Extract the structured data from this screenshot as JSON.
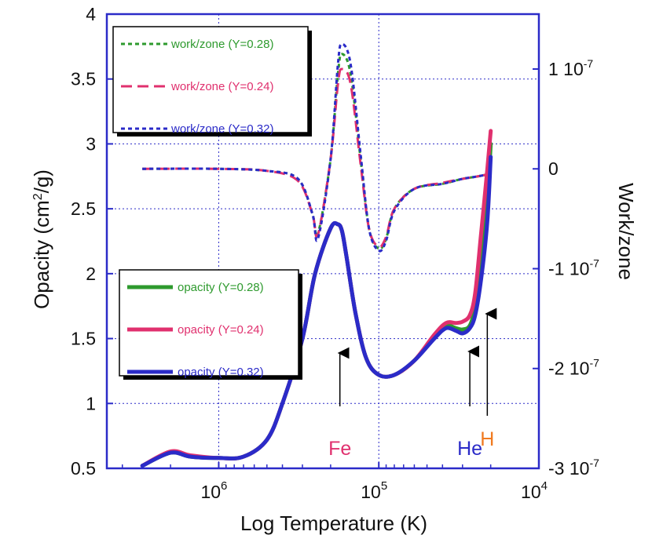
{
  "chart_data": {
    "type": "line",
    "title": "",
    "xlabel": "Log Temperature (K)",
    "x_scale": "log",
    "x_reversed": true,
    "xlim": [
      5000000,
      10000
    ],
    "xticks": [
      {
        "value": 1000000,
        "base": "10",
        "exp": "6"
      },
      {
        "value": 100000,
        "base": "10",
        "exp": "5"
      },
      {
        "value": 10000,
        "base": "10",
        "exp": "4"
      }
    ],
    "ylabel_left": {
      "pre": "Opacity (cm",
      "sup": "2",
      "post": "/g)"
    },
    "ylim_left": [
      0.5,
      4
    ],
    "yticks_left": [
      "0.5",
      "1",
      "1.5",
      "2",
      "2.5",
      "3",
      "3.5",
      "4"
    ],
    "ylabel_right": "Work/zone",
    "ylim_right": [
      -3e-07,
      1.55e-07
    ],
    "yticks_right": [
      {
        "value": 1e-07,
        "label": "1 10",
        "exp": "-7"
      },
      {
        "value": 0,
        "label": "0",
        "exp": ""
      },
      {
        "value": -1e-07,
        "label": "-1 10",
        "exp": "-7"
      },
      {
        "value": -2e-07,
        "label": "-2 10",
        "exp": "-7"
      },
      {
        "value": -3e-07,
        "label": "-3 10",
        "exp": "-7"
      }
    ],
    "grid": true,
    "series": [
      {
        "name": "work/zone (Y=0.28)",
        "axis": "right",
        "style": "dotted",
        "color": "#2e9a2e",
        "x": [
          3000000,
          1000000,
          500000,
          320000,
          260000,
          240000,
          200000,
          180000,
          170000,
          150000,
          130000,
          115000,
          100000,
          90000,
          80000,
          60000,
          40000,
          30000,
          25000,
          20000
        ],
        "y": [
          0,
          0,
          -2e-09,
          -1e-08,
          -4.5e-08,
          -6.5e-08,
          1e-08,
          9.5e-08,
          1.15e-07,
          9.5e-08,
          1e-08,
          -6e-08,
          -8e-08,
          -7e-08,
          -4e-08,
          -2e-08,
          -1.5e-08,
          -1e-08,
          -8e-09,
          -5e-09
        ]
      },
      {
        "name": "work/zone (Y=0.24)",
        "axis": "right",
        "style": "dashed",
        "color": "#e0306e",
        "x": [
          3000000,
          1000000,
          500000,
          320000,
          260000,
          240000,
          200000,
          180000,
          170000,
          150000,
          130000,
          115000,
          100000,
          90000,
          80000,
          60000,
          40000,
          30000,
          25000,
          20000
        ],
        "y": [
          0,
          0,
          -2e-09,
          -1.2e-08,
          -4.5e-08,
          -6.6e-08,
          1e-08,
          8.5e-08,
          1e-07,
          8.5e-08,
          5e-09,
          -6e-08,
          -7.8e-08,
          -6.8e-08,
          -4e-08,
          -2e-08,
          -1.4e-08,
          -1e-08,
          -8e-09,
          -5e-09
        ]
      },
      {
        "name": "work/zone (Y=0.32)",
        "axis": "right",
        "style": "dotted",
        "color": "#2b2bc8",
        "x": [
          3000000,
          1000000,
          500000,
          320000,
          260000,
          240000,
          200000,
          180000,
          170000,
          150000,
          130000,
          115000,
          100000,
          90000,
          80000,
          60000,
          40000,
          30000,
          25000,
          20000
        ],
        "y": [
          0,
          0,
          -2e-09,
          -1e-08,
          -4.5e-08,
          -7e-08,
          1e-08,
          1.05e-07,
          1.25e-07,
          1.05e-07,
          1.5e-08,
          -6e-08,
          -8.2e-08,
          -7.2e-08,
          -4.2e-08,
          -2e-08,
          -1.5e-08,
          -1e-08,
          -8e-09,
          -5e-09
        ]
      },
      {
        "name": "opacity (Y=0.28)",
        "axis": "left",
        "style": "solid",
        "color": "#2e9a2e",
        "x": [
          3000000,
          2000000,
          1500000,
          1000000,
          700000,
          500000,
          400000,
          300000,
          250000,
          200000,
          180000,
          170000,
          160000,
          140000,
          120000,
          100000,
          80000,
          60000,
          45000,
          38000,
          33000,
          30000,
          27000,
          25000,
          23000,
          21000,
          20000
        ],
        "y": [
          0.52,
          0.62,
          0.59,
          0.58,
          0.59,
          0.72,
          1.0,
          1.5,
          2.0,
          2.35,
          2.38,
          2.33,
          2.15,
          1.7,
          1.35,
          1.22,
          1.22,
          1.33,
          1.52,
          1.6,
          1.58,
          1.57,
          1.6,
          1.75,
          2.1,
          2.55,
          3.0
        ]
      },
      {
        "name": "opacity (Y=0.24)",
        "axis": "left",
        "style": "solid",
        "color": "#e0306e",
        "x": [
          3000000,
          2000000,
          1500000,
          1000000,
          700000,
          500000,
          400000,
          300000,
          250000,
          200000,
          180000,
          170000,
          160000,
          140000,
          120000,
          100000,
          80000,
          60000,
          45000,
          38000,
          33000,
          30000,
          27000,
          25000,
          23000,
          21000,
          20000
        ],
        "y": [
          0.52,
          0.63,
          0.6,
          0.58,
          0.59,
          0.72,
          1.0,
          1.5,
          2.0,
          2.35,
          2.38,
          2.33,
          2.15,
          1.7,
          1.35,
          1.22,
          1.22,
          1.33,
          1.53,
          1.62,
          1.62,
          1.63,
          1.68,
          1.85,
          2.3,
          2.8,
          3.1
        ]
      },
      {
        "name": "opacity (Y=0.32)",
        "axis": "left",
        "style": "solid",
        "color": "#2b2bc8",
        "x": [
          3000000,
          2000000,
          1500000,
          1000000,
          700000,
          500000,
          400000,
          300000,
          250000,
          200000,
          180000,
          170000,
          160000,
          140000,
          120000,
          100000,
          80000,
          60000,
          45000,
          38000,
          33000,
          30000,
          27000,
          25000,
          23000,
          21000,
          20000
        ],
        "y": [
          0.52,
          0.62,
          0.59,
          0.58,
          0.59,
          0.72,
          1.0,
          1.5,
          2.0,
          2.35,
          2.38,
          2.33,
          2.15,
          1.7,
          1.35,
          1.22,
          1.22,
          1.33,
          1.5,
          1.58,
          1.56,
          1.54,
          1.58,
          1.68,
          1.95,
          2.4,
          2.9
        ]
      }
    ],
    "legend_top": [
      {
        "label": "work/zone (Y=0.28)",
        "color": "#2e9a2e",
        "style": "dotted"
      },
      {
        "label": "work/zone (Y=0.24)",
        "color": "#e0306e",
        "style": "dashed"
      },
      {
        "label": "work/zone (Y=0.32)",
        "color": "#2b2bc8",
        "style": "dotted"
      }
    ],
    "legend_bottom": [
      {
        "label": "opacity (Y=0.28)",
        "color": "#2e9a2e"
      },
      {
        "label": "opacity (Y=0.24)",
        "color": "#e0306e"
      },
      {
        "label": "opacity (Y=0.32)",
        "color": "#2b2bc8"
      }
    ],
    "annotations": [
      {
        "text": "Fe",
        "color": "#e0306e",
        "x": 175000
      },
      {
        "text": "He",
        "color": "#2b2bc8",
        "x": 27000
      },
      {
        "text": "H",
        "color": "#f07a20",
        "x": 21000
      }
    ]
  }
}
